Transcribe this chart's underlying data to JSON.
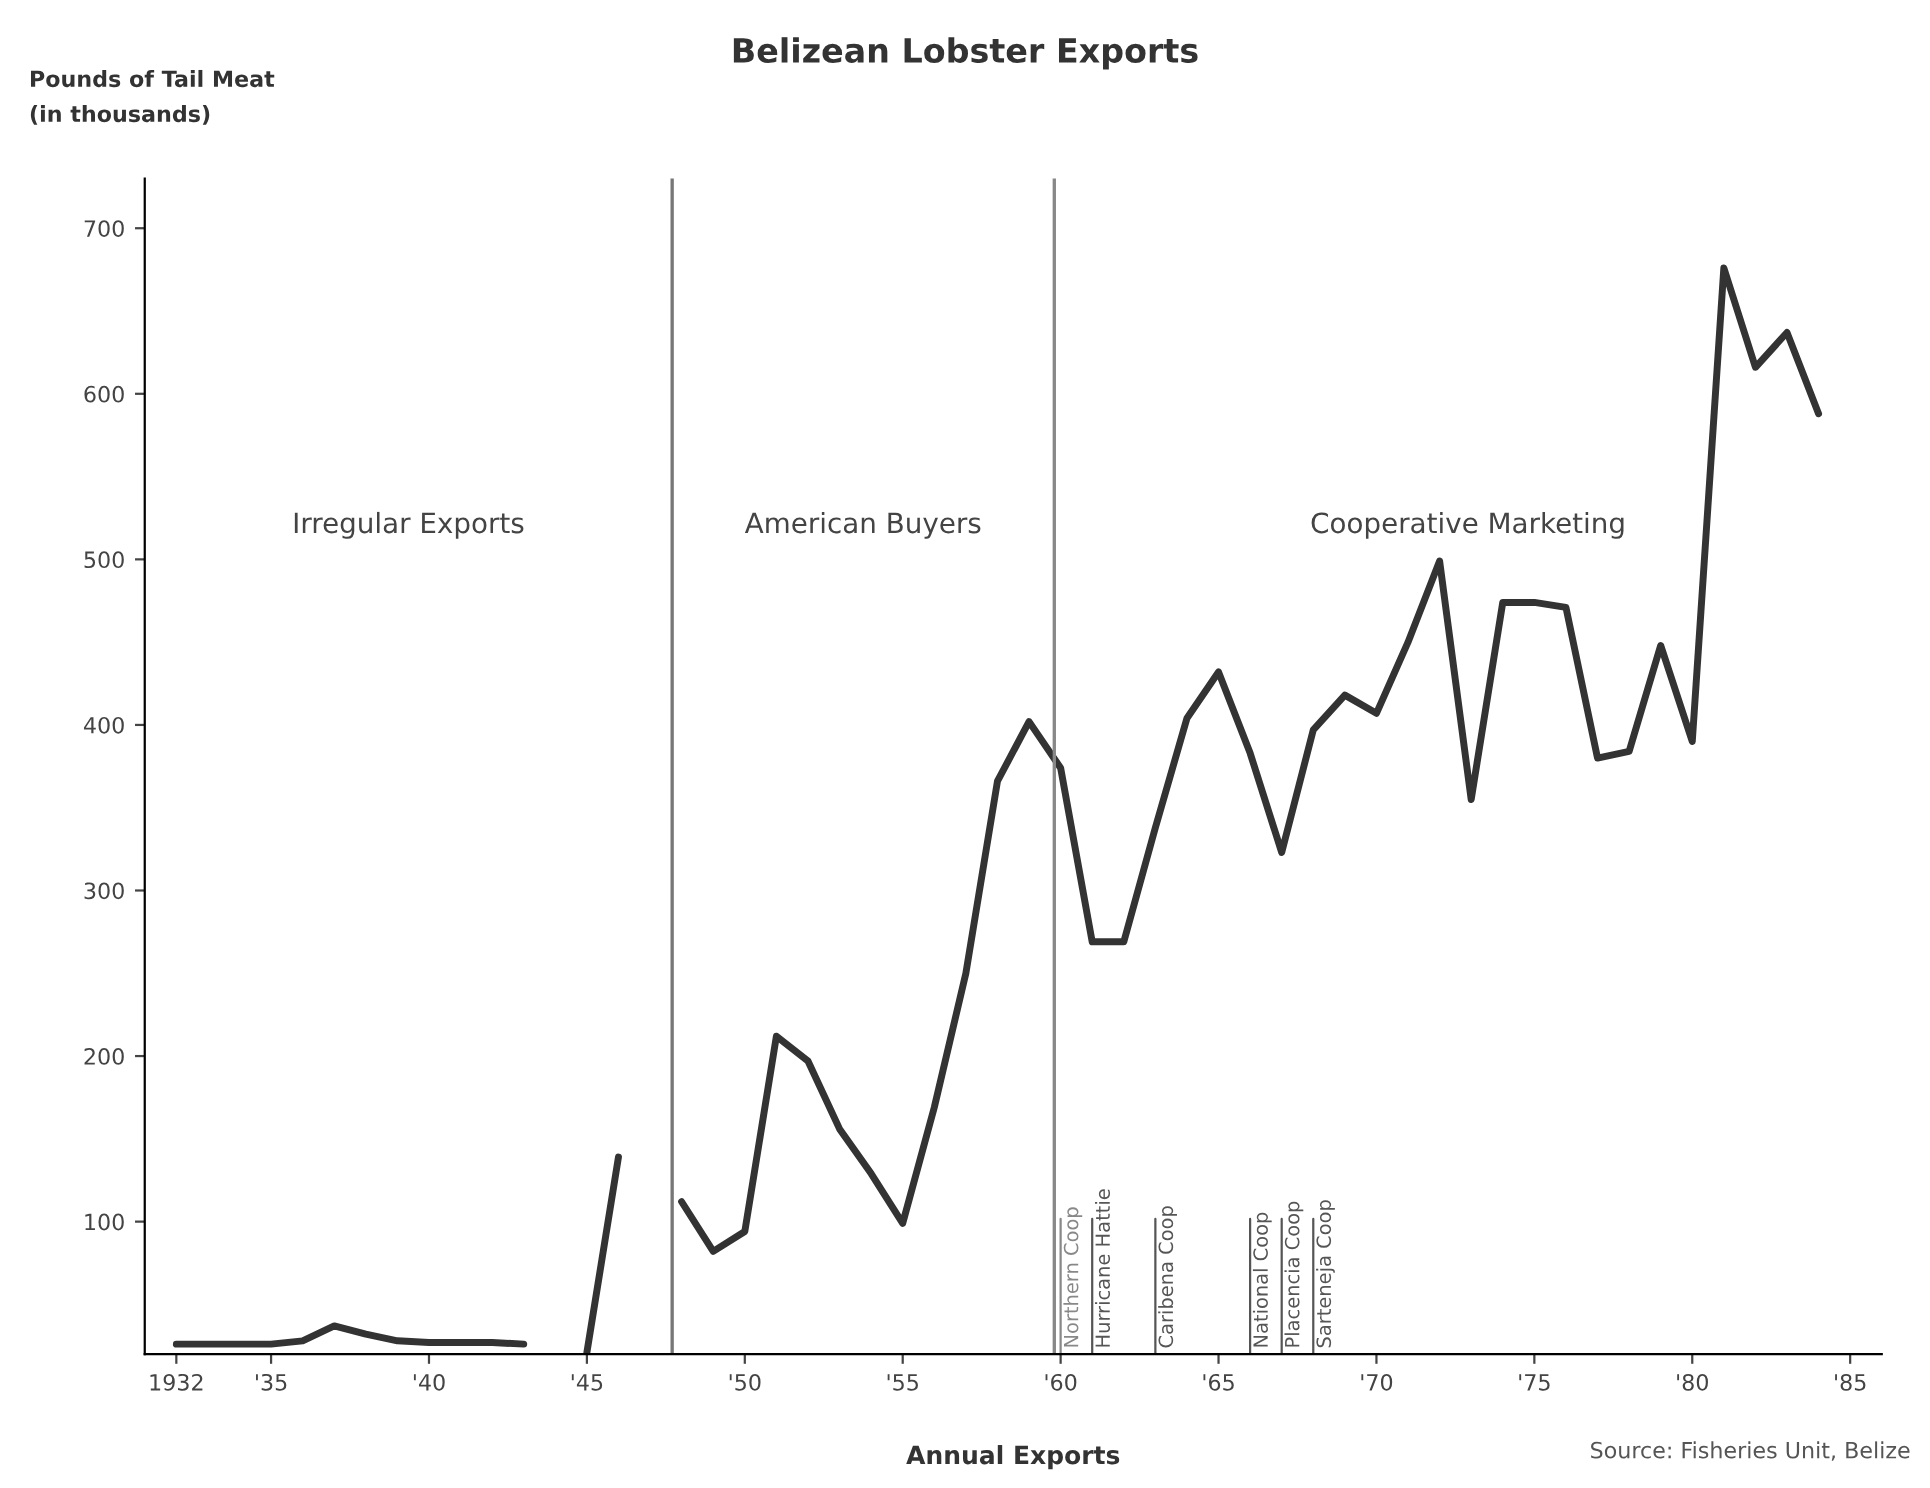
{
  "chart_data": {
    "type": "line",
    "title": "Belizean Lobster Exports",
    "xlabel": "Annual Exports",
    "ylabel": "Pounds of Tail Meat\n(in thousands)",
    "x": [
      1932,
      1933,
      1934,
      1935,
      1936,
      1937,
      1938,
      1939,
      1940,
      1941,
      1942,
      1943,
      1944,
      1945,
      1946,
      1947,
      1948,
      1949,
      1950,
      1951,
      1952,
      1953,
      1954,
      1955,
      1956,
      1957,
      1958,
      1959,
      1960,
      1961,
      1962,
      1963,
      1964,
      1965,
      1966,
      1967,
      1968,
      1969,
      1970,
      1971,
      1972,
      1973,
      1974,
      1975,
      1976,
      1977,
      1978,
      1979,
      1980,
      1981,
      1982,
      1983,
      1984
    ],
    "series": [
      {
        "color": "#333333",
        "values": [
          26,
          26,
          26,
          26,
          28,
          37,
          32,
          28,
          27,
          27,
          27,
          26,
          null,
          21,
          139,
          null,
          112,
          82,
          94,
          212,
          197,
          156,
          129,
          99,
          169,
          250,
          366,
          402,
          374,
          269,
          269,
          338,
          404,
          432,
          383,
          323,
          397,
          418,
          407,
          450,
          499,
          355,
          474,
          474,
          471,
          380,
          384,
          448,
          390,
          676,
          616,
          637,
          588
        ]
      }
    ],
    "xlim": [
      1931,
      1986
    ],
    "ylim": [
      20,
      730
    ],
    "xticks": [
      {
        "value": 1932,
        "label": "1932"
      },
      {
        "value": 1935,
        "label": "'35"
      },
      {
        "value": 1940,
        "label": "'40"
      },
      {
        "value": 1945,
        "label": "'45"
      },
      {
        "value": 1950,
        "label": "'50"
      },
      {
        "value": 1955,
        "label": "'55"
      },
      {
        "value": 1960,
        "label": "'60"
      },
      {
        "value": 1965,
        "label": "'65"
      },
      {
        "value": 1970,
        "label": "'70"
      },
      {
        "value": 1975,
        "label": "'75"
      },
      {
        "value": 1980,
        "label": "'80"
      },
      {
        "value": 1985,
        "label": "'85"
      }
    ],
    "yticks": [
      100,
      200,
      300,
      400,
      500,
      600,
      700
    ],
    "ref_lines": [
      {
        "axis": "x",
        "value": 1947.7,
        "color": "#777777"
      },
      {
        "axis": "x",
        "value": 1959.8,
        "color": "#888888"
      },
      {
        "axis": "x",
        "value": 1960,
        "label": "Northern Coop",
        "color": "#888888"
      },
      {
        "axis": "x",
        "value": 1961,
        "label": "Hurricane Hattie",
        "color": "#555555"
      },
      {
        "axis": "x",
        "value": 1963,
        "label": "Caribena Coop",
        "color": "#555555"
      },
      {
        "axis": "x",
        "value": 1966,
        "label": "National Coop",
        "color": "#555555"
      },
      {
        "axis": "x",
        "value": 1967,
        "label": "Placencia Coop",
        "color": "#555555"
      },
      {
        "axis": "x",
        "value": 1968,
        "label": "Sarteneja Coop",
        "color": "#555555"
      }
    ],
    "annotations": [
      "Irregular Exports",
      "American Buyers",
      "Cooperative Marketing",
      "Source: Fisheries Unit, Belize"
    ],
    "grid": false,
    "legend": false,
    "marker": "none",
    "line_style": "solid"
  }
}
